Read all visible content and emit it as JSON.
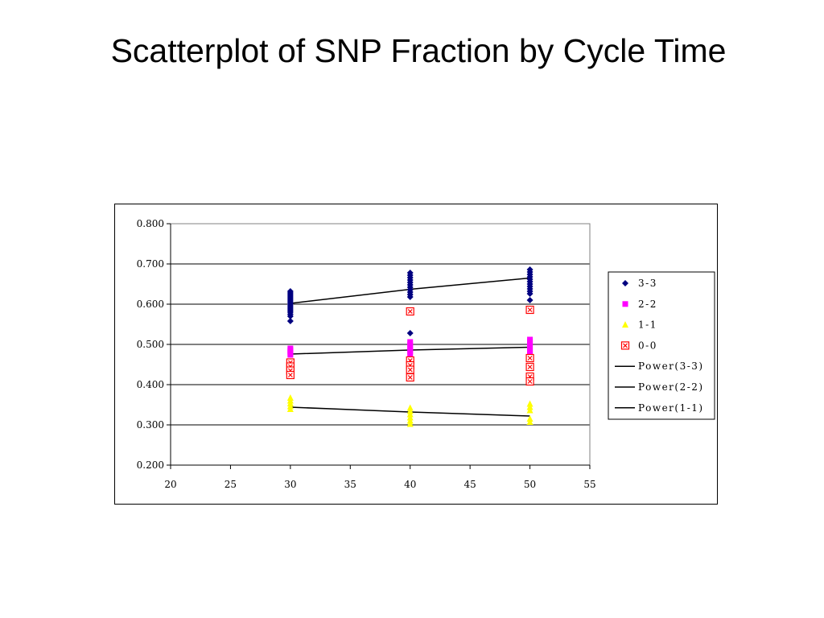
{
  "slide": {
    "title": "Scatterplot of SNP Fraction by Cycle Time"
  },
  "chart_data": {
    "type": "scatter",
    "title": "",
    "xlabel": "",
    "ylabel": "",
    "xlim": [
      20,
      55
    ],
    "ylim": [
      0.2,
      0.8
    ],
    "x_ticks": [
      "20",
      "25",
      "30",
      "35",
      "40",
      "45",
      "50",
      "55"
    ],
    "y_ticks": [
      "0.200",
      "0.300",
      "0.400",
      "0.500",
      "0.600",
      "0.700",
      "0.800"
    ],
    "grid": "horizontal major",
    "legend_position": "right",
    "series": [
      {
        "name": "3-3",
        "marker": "diamond",
        "color": "#000080",
        "points": [
          [
            30,
            0.632
          ],
          [
            30,
            0.628
          ],
          [
            30,
            0.624
          ],
          [
            30,
            0.62
          ],
          [
            30,
            0.616
          ],
          [
            30,
            0.612
          ],
          [
            30,
            0.608
          ],
          [
            30,
            0.604
          ],
          [
            30,
            0.6
          ],
          [
            30,
            0.596
          ],
          [
            30,
            0.592
          ],
          [
            30,
            0.588
          ],
          [
            30,
            0.584
          ],
          [
            30,
            0.58
          ],
          [
            30,
            0.575
          ],
          [
            30,
            0.57
          ],
          [
            30,
            0.558
          ],
          [
            40,
            0.678
          ],
          [
            40,
            0.672
          ],
          [
            40,
            0.666
          ],
          [
            40,
            0.66
          ],
          [
            40,
            0.654
          ],
          [
            40,
            0.648
          ],
          [
            40,
            0.642
          ],
          [
            40,
            0.636
          ],
          [
            40,
            0.63
          ],
          [
            40,
            0.624
          ],
          [
            40,
            0.618
          ],
          [
            40,
            0.528
          ],
          [
            50,
            0.686
          ],
          [
            50,
            0.68
          ],
          [
            50,
            0.674
          ],
          [
            50,
            0.668
          ],
          [
            50,
            0.662
          ],
          [
            50,
            0.656
          ],
          [
            50,
            0.65
          ],
          [
            50,
            0.644
          ],
          [
            50,
            0.638
          ],
          [
            50,
            0.632
          ],
          [
            50,
            0.626
          ],
          [
            50,
            0.61
          ]
        ]
      },
      {
        "name": "2-2",
        "marker": "square",
        "color": "#FF00FF",
        "points": [
          [
            30,
            0.49
          ],
          [
            30,
            0.486
          ],
          [
            30,
            0.482
          ],
          [
            30,
            0.478
          ],
          [
            30,
            0.474
          ],
          [
            40,
            0.506
          ],
          [
            40,
            0.5
          ],
          [
            40,
            0.494
          ],
          [
            40,
            0.488
          ],
          [
            40,
            0.482
          ],
          [
            40,
            0.476
          ],
          [
            50,
            0.512
          ],
          [
            50,
            0.506
          ],
          [
            50,
            0.5
          ],
          [
            50,
            0.494
          ],
          [
            50,
            0.488
          ],
          [
            50,
            0.482
          ],
          [
            50,
            0.476
          ]
        ]
      },
      {
        "name": "1-1",
        "marker": "triangle",
        "color": "#FFFF00",
        "points": [
          [
            30,
            0.367
          ],
          [
            30,
            0.36
          ],
          [
            30,
            0.353
          ],
          [
            30,
            0.346
          ],
          [
            30,
            0.339
          ],
          [
            40,
            0.342
          ],
          [
            40,
            0.334
          ],
          [
            40,
            0.326
          ],
          [
            40,
            0.318
          ],
          [
            40,
            0.31
          ],
          [
            40,
            0.302
          ],
          [
            50,
            0.352
          ],
          [
            50,
            0.344
          ],
          [
            50,
            0.336
          ],
          [
            50,
            0.315
          ],
          [
            50,
            0.307
          ]
        ]
      },
      {
        "name": "0-0",
        "marker": "x-square",
        "color": "#FF0000",
        "points": [
          [
            30,
            0.455
          ],
          [
            30,
            0.445
          ],
          [
            30,
            0.435
          ],
          [
            30,
            0.424
          ],
          [
            40,
            0.582
          ],
          [
            40,
            0.46
          ],
          [
            40,
            0.448
          ],
          [
            40,
            0.437
          ],
          [
            40,
            0.418
          ],
          [
            50,
            0.586
          ],
          [
            50,
            0.466
          ],
          [
            50,
            0.444
          ],
          [
            50,
            0.42
          ],
          [
            50,
            0.408
          ]
        ]
      }
    ],
    "trendlines": [
      {
        "name": "Power(3-3)",
        "type": "power",
        "color": "#000000",
        "points": [
          [
            30,
            0.602
          ],
          [
            40,
            0.637
          ],
          [
            50,
            0.665
          ]
        ]
      },
      {
        "name": "Power(2-2)",
        "type": "power",
        "color": "#000000",
        "points": [
          [
            30,
            0.476
          ],
          [
            40,
            0.486
          ],
          [
            50,
            0.493
          ]
        ]
      },
      {
        "name": "Power(1-1)",
        "type": "power",
        "color": "#000000",
        "points": [
          [
            30,
            0.344
          ],
          [
            40,
            0.332
          ],
          [
            50,
            0.322
          ]
        ]
      }
    ]
  }
}
